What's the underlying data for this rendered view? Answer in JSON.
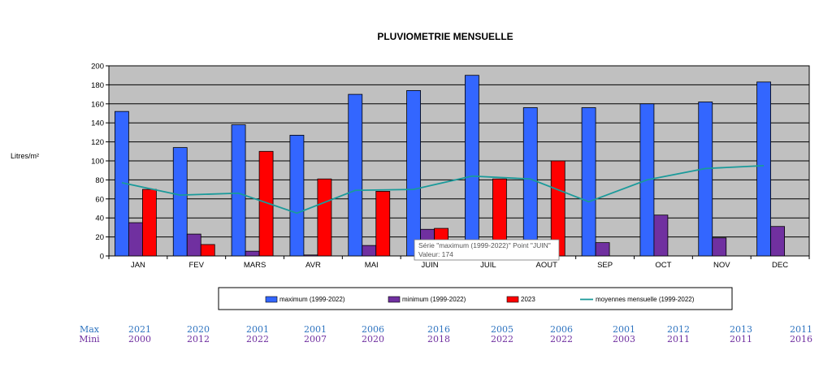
{
  "chart_data": {
    "type": "bar",
    "title": "PLUVIOMETRIE MENSUELLE",
    "ylabel": "Litres/m²",
    "xlabel": "",
    "ylim": [
      0,
      200
    ],
    "yticks": [
      0,
      20,
      40,
      60,
      80,
      100,
      120,
      140,
      160,
      180,
      200
    ],
    "grid": true,
    "categories": [
      "JAN",
      "FEV",
      "MARS",
      "AVR",
      "MAI",
      "JUIN",
      "JUIL",
      "AOUT",
      "SEP",
      "OCT",
      "NOV",
      "DEC"
    ],
    "series": [
      {
        "name": "maximum (1999-2022)",
        "kind": "bar",
        "color": "#3366ff",
        "values": [
          152,
          114,
          138,
          127,
          170,
          174,
          190,
          156,
          156,
          160,
          162,
          183
        ]
      },
      {
        "name": "minimum (1999-2022)",
        "kind": "bar",
        "color": "#7030a0",
        "values": [
          35,
          23,
          5,
          1,
          11,
          28,
          null,
          null,
          14,
          43,
          19,
          31
        ]
      },
      {
        "name": "2023",
        "kind": "bar",
        "color": "#ff0000",
        "values": [
          70,
          12,
          110,
          81,
          68,
          29,
          81,
          100,
          null,
          null,
          null,
          null
        ]
      },
      {
        "name": "moyennes mensuelle (1999-2022)",
        "kind": "line",
        "color": "#1a9a9a",
        "values": [
          77,
          64,
          66,
          45,
          69,
          70,
          84,
          81,
          57,
          80,
          92,
          95
        ]
      }
    ],
    "legend_position": "bottom",
    "plot_background": "#c0c0c0",
    "tooltip": {
      "line1": "Série \"maximum (1999-2022)\" Point \"JUIN\"",
      "line2": "Valeur: 174"
    }
  },
  "years_table": {
    "max_label": "Max",
    "min_label": "Mini",
    "max_years": [
      "2021",
      "2020",
      "2001",
      "2001",
      "2006",
      "2016",
      "2005",
      "2006",
      "2001",
      "2012",
      "2013",
      "2011"
    ],
    "min_years": [
      "2000",
      "2012",
      "2022",
      "2007",
      "2020",
      "2018",
      "2022",
      "2022",
      "2003",
      "2011",
      "2011",
      "2016"
    ]
  }
}
